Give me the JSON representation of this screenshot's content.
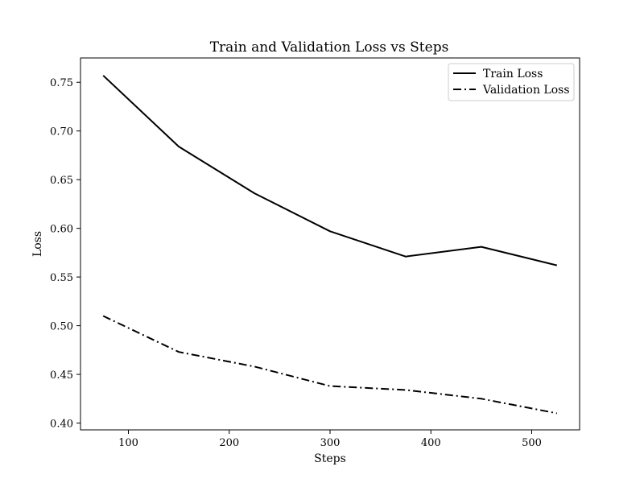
{
  "chart_data": {
    "type": "line",
    "title": "Train and Validation Loss vs Steps",
    "xlabel": "Steps",
    "ylabel": "Loss",
    "xlim": [
      52.5,
      547.5
    ],
    "ylim": [
      0.393,
      0.775
    ],
    "xticks": [
      100,
      200,
      300,
      400,
      500
    ],
    "yticks": [
      0.4,
      0.45,
      0.5,
      0.55,
      0.6,
      0.65,
      0.7,
      0.75
    ],
    "ytick_labels": [
      "0.40",
      "0.45",
      "0.50",
      "0.55",
      "0.60",
      "0.65",
      "0.70",
      "0.75"
    ],
    "grid": false,
    "legend_position": "top-right",
    "x": [
      75,
      150,
      225,
      300,
      375,
      450,
      525
    ],
    "series": [
      {
        "name": "Train Loss",
        "style": "solid",
        "color": "#000000",
        "values": [
          0.757,
          0.684,
          0.636,
          0.597,
          0.571,
          0.581,
          0.562
        ]
      },
      {
        "name": "Validation Loss",
        "style": "dashdot",
        "color": "#000000",
        "values": [
          0.51,
          0.473,
          0.458,
          0.438,
          0.434,
          0.425,
          0.41
        ]
      }
    ]
  }
}
